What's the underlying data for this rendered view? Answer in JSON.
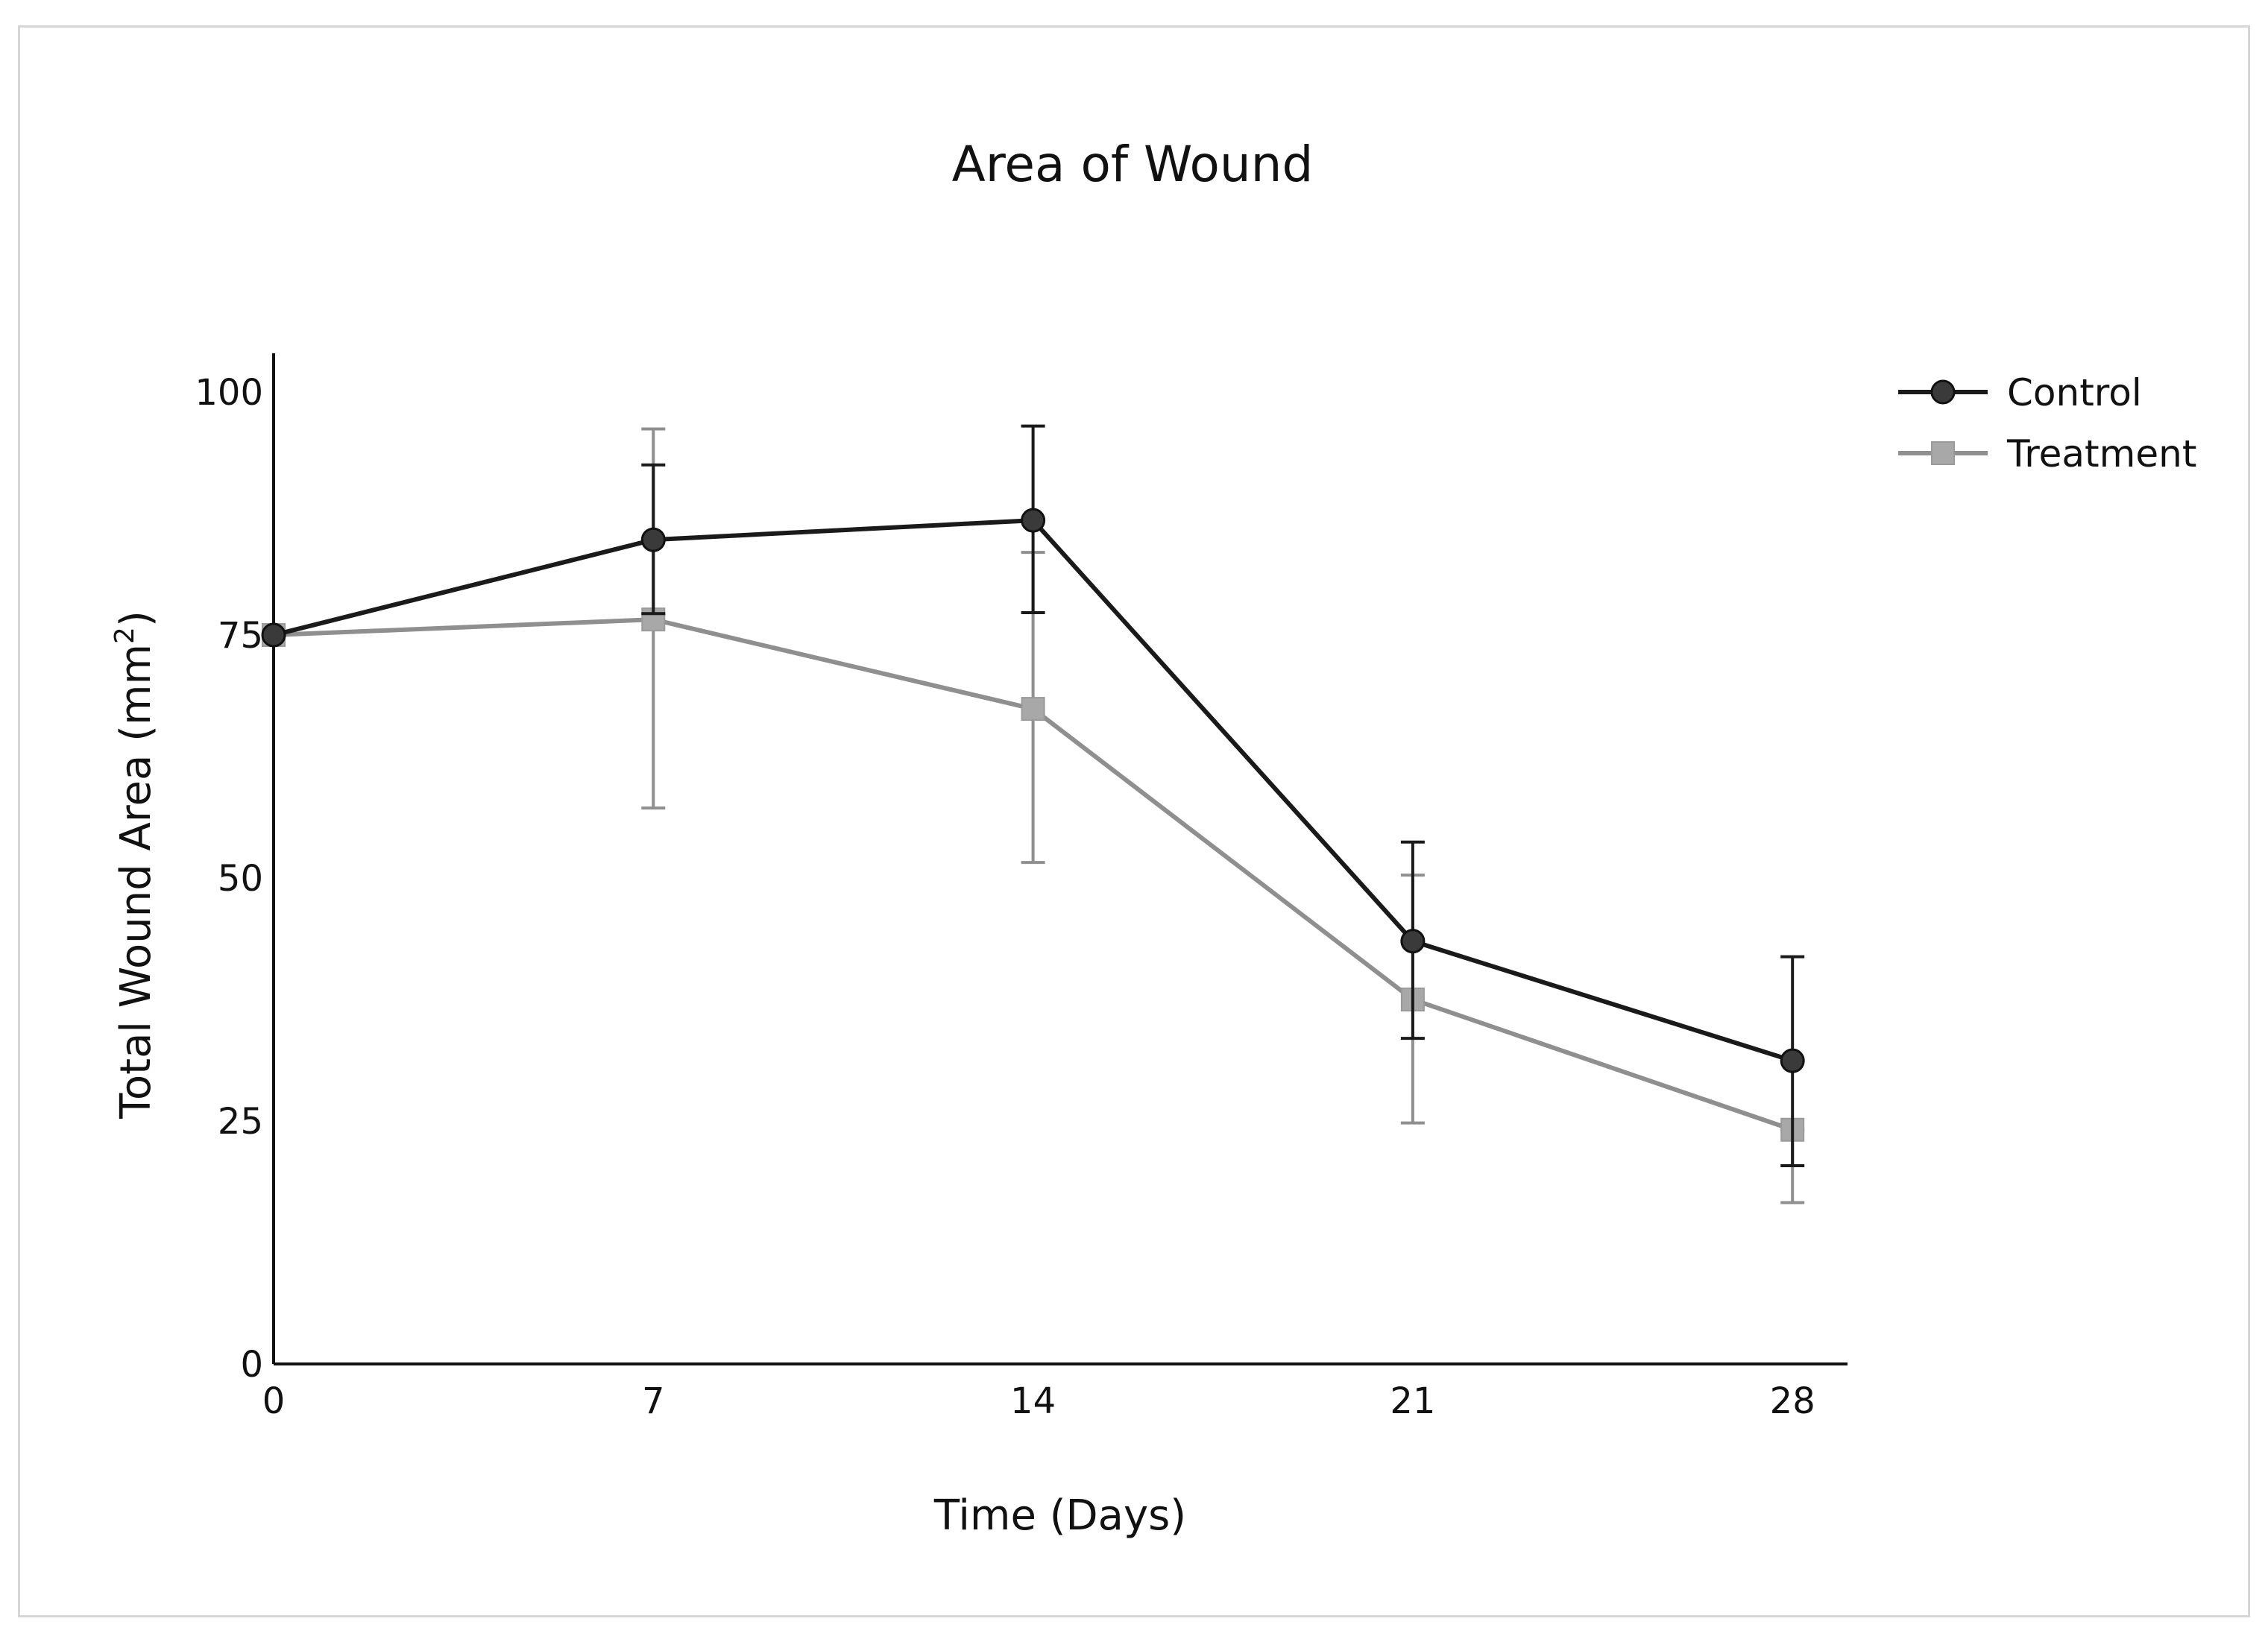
{
  "chart_data": {
    "type": "line",
    "title": "Area of Wound",
    "xlabel": "Time (Days)",
    "ylabel": "Total Wound Area (mm",
    "ylabel_sup": "2",
    "ylabel_close": ")",
    "x": [
      0,
      7,
      14,
      21,
      28
    ],
    "xlim": [
      0,
      29
    ],
    "ylim": [
      0,
      104
    ],
    "xticks": [
      0,
      7,
      14,
      21,
      28
    ],
    "yticks": [
      0,
      25,
      50,
      75,
      100
    ],
    "grid": false,
    "legend": "top-right",
    "series": [
      {
        "name": "Control",
        "marker": "circle",
        "color": "#1a1a1a",
        "values": [
          75,
          84.8,
          86.8,
          43.5,
          31.2
        ],
        "err_low": [
          75,
          77.2,
          77.3,
          33.5,
          20.4
        ],
        "err_high": [
          75,
          92.5,
          96.5,
          53.7,
          41.9
        ]
      },
      {
        "name": "Treatment",
        "marker": "square",
        "color": "#8f8f8f",
        "values": [
          75,
          76.6,
          67.4,
          37.5,
          24.1
        ],
        "err_low": [
          75,
          57.2,
          51.6,
          24.8,
          16.6
        ],
        "err_high": [
          75,
          96.2,
          83.5,
          50.3,
          24.1
        ]
      }
    ]
  }
}
